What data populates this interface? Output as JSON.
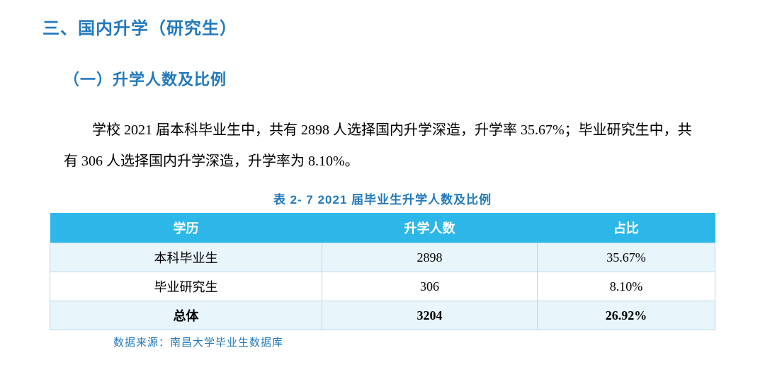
{
  "section_title": "三、国内升学（研究生）",
  "subsection_title": "（一）升学人数及比例",
  "body_text": "学校 2021 届本科毕业生中，共有 2898 人选择国内升学深造，升学率 35.67%；毕业研究生中，共有 306 人选择国内升学深造，升学率为 8.10%。",
  "table_caption": "表 2- 7  2021 届毕业生升学人数及比例",
  "table": {
    "columns": [
      "学历",
      "升学人数",
      "占比"
    ],
    "rows": [
      {
        "label": "本科毕业生",
        "count": "2898",
        "pct": "35.67%",
        "bold": false
      },
      {
        "label": "毕业研究生",
        "count": "306",
        "pct": "8.10%",
        "bold": false
      },
      {
        "label": "总体",
        "count": "3204",
        "pct": "26.92%",
        "bold": true
      }
    ],
    "header_bg": "#2db7e8",
    "header_fg": "#ffffff",
    "row_even_bg": "#e8f5fb",
    "row_odd_bg": "#ffffff",
    "border_color": "#b8d8e8"
  },
  "footnote": "数据来源：南昌大学毕业生数据库",
  "colors": {
    "heading": "#2279bd",
    "body": "#000000"
  }
}
